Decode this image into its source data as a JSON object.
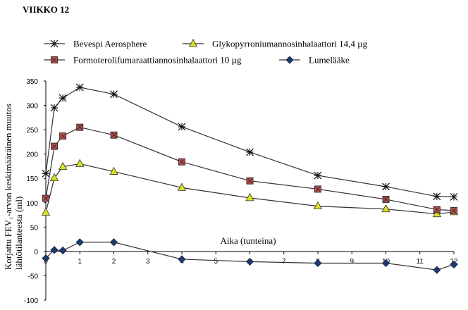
{
  "chart_data": {
    "type": "line",
    "title": "VIIKKO 12",
    "xlabel": "Aika (tunteina)",
    "ylabel": "Korjattu FEV₁-arvon keskimääräinen muutos lähtötilanteesta (ml)",
    "xlim": [
      0,
      12
    ],
    "ylim": [
      -100,
      350
    ],
    "xticks": [
      "0",
      "1",
      "2",
      "3",
      "4",
      "5",
      "6",
      "7",
      "8",
      "9",
      "10",
      "11",
      "12"
    ],
    "yticks": [
      "350",
      "300",
      "250",
      "200",
      "150",
      "100",
      "50",
      "0",
      "-50",
      "-100"
    ],
    "grid": false,
    "legend_position": "top",
    "series": [
      {
        "name": "Bevespi Aerosphere",
        "marker": "asterisk",
        "color": "#333333",
        "x": [
          0,
          0.25,
          0.5,
          1,
          2,
          4,
          6,
          8,
          10,
          11.5,
          12
        ],
        "values": [
          160,
          295,
          315,
          337,
          323,
          256,
          204,
          156,
          133,
          113,
          112
        ]
      },
      {
        "name": "Glykopyrroniumannosinhalaattori 14,4 µg",
        "marker": "triangle",
        "color": "#d9e021",
        "x": [
          0,
          0.25,
          0.5,
          1,
          2,
          4,
          6,
          8,
          10,
          11.5,
          12
        ],
        "values": [
          80,
          151,
          174,
          180,
          164,
          131,
          110,
          93,
          87,
          77,
          81
        ]
      },
      {
        "name": "Formoterolifumaraattiannosinhalaattori 10 µg",
        "marker": "square",
        "color": "#c0504d",
        "x": [
          0,
          0.25,
          0.5,
          1,
          2,
          4,
          6,
          8,
          10,
          11.5,
          12
        ],
        "values": [
          109,
          216,
          237,
          255,
          239,
          184,
          145,
          128,
          107,
          86,
          84
        ]
      },
      {
        "name": "Lumelääke",
        "marker": "diamond",
        "color": "#1f3a6e",
        "x": [
          0,
          0.25,
          0.5,
          1,
          2,
          4,
          6,
          8,
          10,
          11.5,
          12
        ],
        "values": [
          -14,
          3,
          2,
          19,
          19,
          -16,
          -21,
          -24,
          -24,
          -38,
          -27
        ]
      }
    ]
  }
}
